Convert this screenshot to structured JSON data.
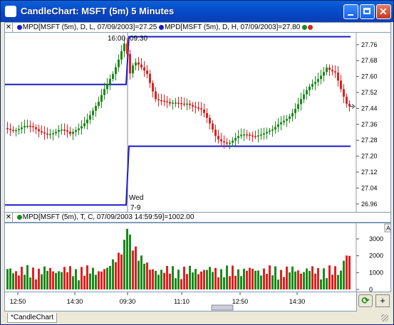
{
  "window": {
    "title": "CandleChart: MSFT (5m) 5 Minutes"
  },
  "upper_strip": {
    "items": [
      {
        "dot": "#1a1acc",
        "text": "MPD[MSFT (5m), D, L, 07/09/2003]=27.25"
      },
      {
        "dot": "#1a1acc",
        "text": "MPD[MSFT (5m), D, H, 07/09/2003]=27.80"
      }
    ]
  },
  "lower_strip": {
    "text": "MPD[MSFT (5m), T, C, 07/09/2003 14:59:59]=1002.00"
  },
  "price_axis": {
    "ticks": [
      "27.76",
      "27.68",
      "27.60",
      "27.52",
      "27.44",
      "27.36",
      "27.28",
      "27.20",
      "27.12",
      "27.04",
      "26.96"
    ]
  },
  "volume_axis": {
    "ticks": [
      "3000",
      "2000",
      "1000",
      "0"
    ]
  },
  "time_axis": {
    "ticks": [
      "12:50",
      "14:30",
      "09:30",
      "11:10",
      "12:50",
      "14:30"
    ]
  },
  "annotations": {
    "top_left": "16:00",
    "top_right": "09:30",
    "day_label": "Wed",
    "date_label": "7-9"
  },
  "tabs": {
    "active": "*CandleChart"
  },
  "buttons": {
    "plus": "+",
    "refresh_icon": "refresh-icon"
  },
  "colors": {
    "up": "#1a8a1a",
    "down": "#e02020",
    "level": "#1a1acc"
  },
  "chart_data": {
    "type": "candlestick",
    "levels": [
      {
        "name": "MPD D L",
        "value": 27.25
      },
      {
        "name": "MPD D H",
        "value": 27.8
      }
    ],
    "ylim": [
      26.92,
      27.82
    ],
    "volume_ylim": [
      0,
      3800
    ]
  }
}
